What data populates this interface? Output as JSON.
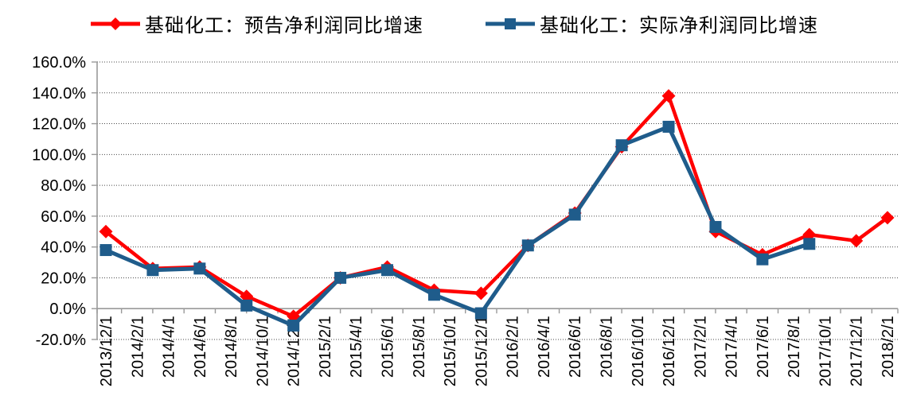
{
  "chart_data": {
    "type": "line",
    "title": "",
    "xlabel": "",
    "ylabel": "",
    "ylim": [
      -20,
      160
    ],
    "ytick_step": 20,
    "ytick_labels": [
      "160.0%",
      "140.0%",
      "120.0%",
      "100.0%",
      "80.0%",
      "60.0%",
      "40.0%",
      "20.0%",
      "0.0%",
      "-20.0%"
    ],
    "grid": "horizontal dotted",
    "legend_position": "top",
    "x_axis_type": "date, bimonthly tick labels, rotated 90deg",
    "x_labels": [
      "2013/12/1",
      "2014/2/1",
      "2014/4/1",
      "2014/6/1",
      "2014/8/1",
      "2014/10/1",
      "2014/12/1",
      "2015/2/1",
      "2015/4/1",
      "2015/6/1",
      "2015/8/1",
      "2015/10/1",
      "2015/12/1",
      "2016/2/1",
      "2016/4/1",
      "2016/6/1",
      "2016/8/1",
      "2016/10/1",
      "2016/12/1",
      "2017/2/1",
      "2017/4/1",
      "2017/6/1",
      "2017/8/1",
      "2017/10/1",
      "2017/12/1",
      "2018/2/1"
    ],
    "x_label_months": [
      0,
      2,
      4,
      6,
      8,
      10,
      12,
      14,
      16,
      18,
      20,
      22,
      24,
      26,
      28,
      30,
      32,
      34,
      36,
      38,
      40,
      42,
      44,
      46,
      48,
      50
    ],
    "x_dates": [
      "2013/12",
      "2014/3",
      "2014/6",
      "2014/9",
      "2014/12",
      "2015/3",
      "2015/6",
      "2015/9",
      "2015/12",
      "2016/3",
      "2016/6",
      "2016/9",
      "2016/12",
      "2017/3",
      "2017/6",
      "2017/9",
      "2017/12",
      "2018/2"
    ],
    "x_months": [
      0,
      3,
      6,
      9,
      12,
      15,
      18,
      21,
      24,
      27,
      30,
      33,
      36,
      39,
      42,
      45,
      48,
      50
    ],
    "series": [
      {
        "name": "基础化工：预告净利润同比增速",
        "color": "#FF0000",
        "marker": "diamond",
        "values_pct": [
          50,
          26,
          27,
          8,
          -5,
          20,
          27,
          12,
          10,
          41,
          62,
          105,
          138,
          50,
          35,
          48,
          44,
          59
        ]
      },
      {
        "name": "基础化工：实际净利润同比增速",
        "color": "#1F5C8B",
        "marker": "square",
        "values_pct": [
          38,
          25,
          26,
          2,
          -11,
          20,
          25,
          9,
          -3,
          41,
          61,
          106,
          118,
          53,
          32,
          42,
          null,
          null
        ]
      }
    ]
  },
  "colors": {
    "forecast_red": "#FF0000",
    "actual_blue": "#1F5C8B",
    "axis_gray": "#999999",
    "grid_dots": "#4a4a4a",
    "label_text": "#000000",
    "background": "#FFFFFF"
  }
}
